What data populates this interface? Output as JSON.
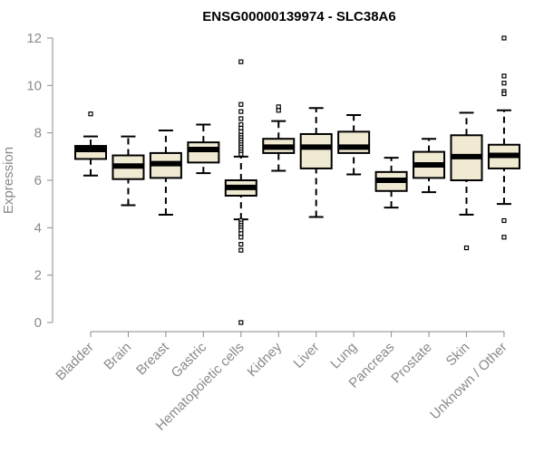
{
  "chart_data": {
    "type": "boxplot",
    "title": "ENSG00000139974 - SLC38A6",
    "xlabel": "",
    "ylabel": "Expression",
    "ylim": [
      0,
      12
    ],
    "yticks": [
      0,
      2,
      4,
      6,
      8,
      10,
      12
    ],
    "box_fill": "#f0ead2",
    "categories": [
      "Bladder",
      "Brain",
      "Breast",
      "Gastric",
      "Hematopoietic cells",
      "Kidney",
      "Liver",
      "Lung",
      "Pancreas",
      "Prostate",
      "Skin",
      "Unknown / Other"
    ],
    "boxes": [
      {
        "name": "Bladder",
        "whisker_low": 6.2,
        "q1": 6.9,
        "median": 7.3,
        "q3": 7.45,
        "whisker_high": 7.85,
        "outliers": [
          8.8
        ]
      },
      {
        "name": "Brain",
        "whisker_low": 4.95,
        "q1": 6.05,
        "median": 6.6,
        "q3": 7.05,
        "whisker_high": 7.85,
        "outliers": []
      },
      {
        "name": "Breast",
        "whisker_low": 4.55,
        "q1": 6.1,
        "median": 6.7,
        "q3": 7.15,
        "whisker_high": 8.1,
        "outliers": []
      },
      {
        "name": "Gastric",
        "whisker_low": 6.3,
        "q1": 6.75,
        "median": 7.3,
        "q3": 7.6,
        "whisker_high": 8.35,
        "outliers": []
      },
      {
        "name": "Hematopoietic cells",
        "whisker_low": 4.35,
        "q1": 5.35,
        "median": 5.7,
        "q3": 6.0,
        "whisker_high": 7.0,
        "outliers": [
          11.0,
          9.2,
          8.9,
          8.6,
          8.35,
          8.2,
          8.05,
          7.9,
          7.8,
          7.7,
          7.6,
          7.5,
          7.4,
          7.3,
          7.2,
          7.1,
          4.3,
          4.2,
          4.1,
          4.0,
          3.9,
          3.75,
          3.6,
          3.3,
          3.05,
          0.0
        ]
      },
      {
        "name": "Kidney",
        "whisker_low": 6.4,
        "q1": 7.15,
        "median": 7.4,
        "q3": 7.75,
        "whisker_high": 8.5,
        "outliers": [
          9.1,
          8.95
        ]
      },
      {
        "name": "Liver",
        "whisker_low": 4.45,
        "q1": 6.5,
        "median": 7.4,
        "q3": 7.95,
        "whisker_high": 9.05,
        "outliers": []
      },
      {
        "name": "Lung",
        "whisker_low": 6.25,
        "q1": 7.15,
        "median": 7.4,
        "q3": 8.05,
        "whisker_high": 8.75,
        "outliers": []
      },
      {
        "name": "Pancreas",
        "whisker_low": 4.85,
        "q1": 5.55,
        "median": 6.0,
        "q3": 6.35,
        "whisker_high": 6.95,
        "outliers": []
      },
      {
        "name": "Prostate",
        "whisker_low": 5.5,
        "q1": 6.1,
        "median": 6.65,
        "q3": 7.2,
        "whisker_high": 7.75,
        "outliers": []
      },
      {
        "name": "Skin",
        "whisker_low": 4.55,
        "q1": 6.0,
        "median": 7.0,
        "q3": 7.9,
        "whisker_high": 8.85,
        "outliers": [
          3.15
        ]
      },
      {
        "name": "Unknown / Other",
        "whisker_low": 5.0,
        "q1": 6.5,
        "median": 7.05,
        "q3": 7.5,
        "whisker_high": 8.95,
        "outliers": [
          12.0,
          10.4,
          10.1,
          9.75,
          9.65,
          4.3,
          3.6
        ]
      }
    ]
  }
}
